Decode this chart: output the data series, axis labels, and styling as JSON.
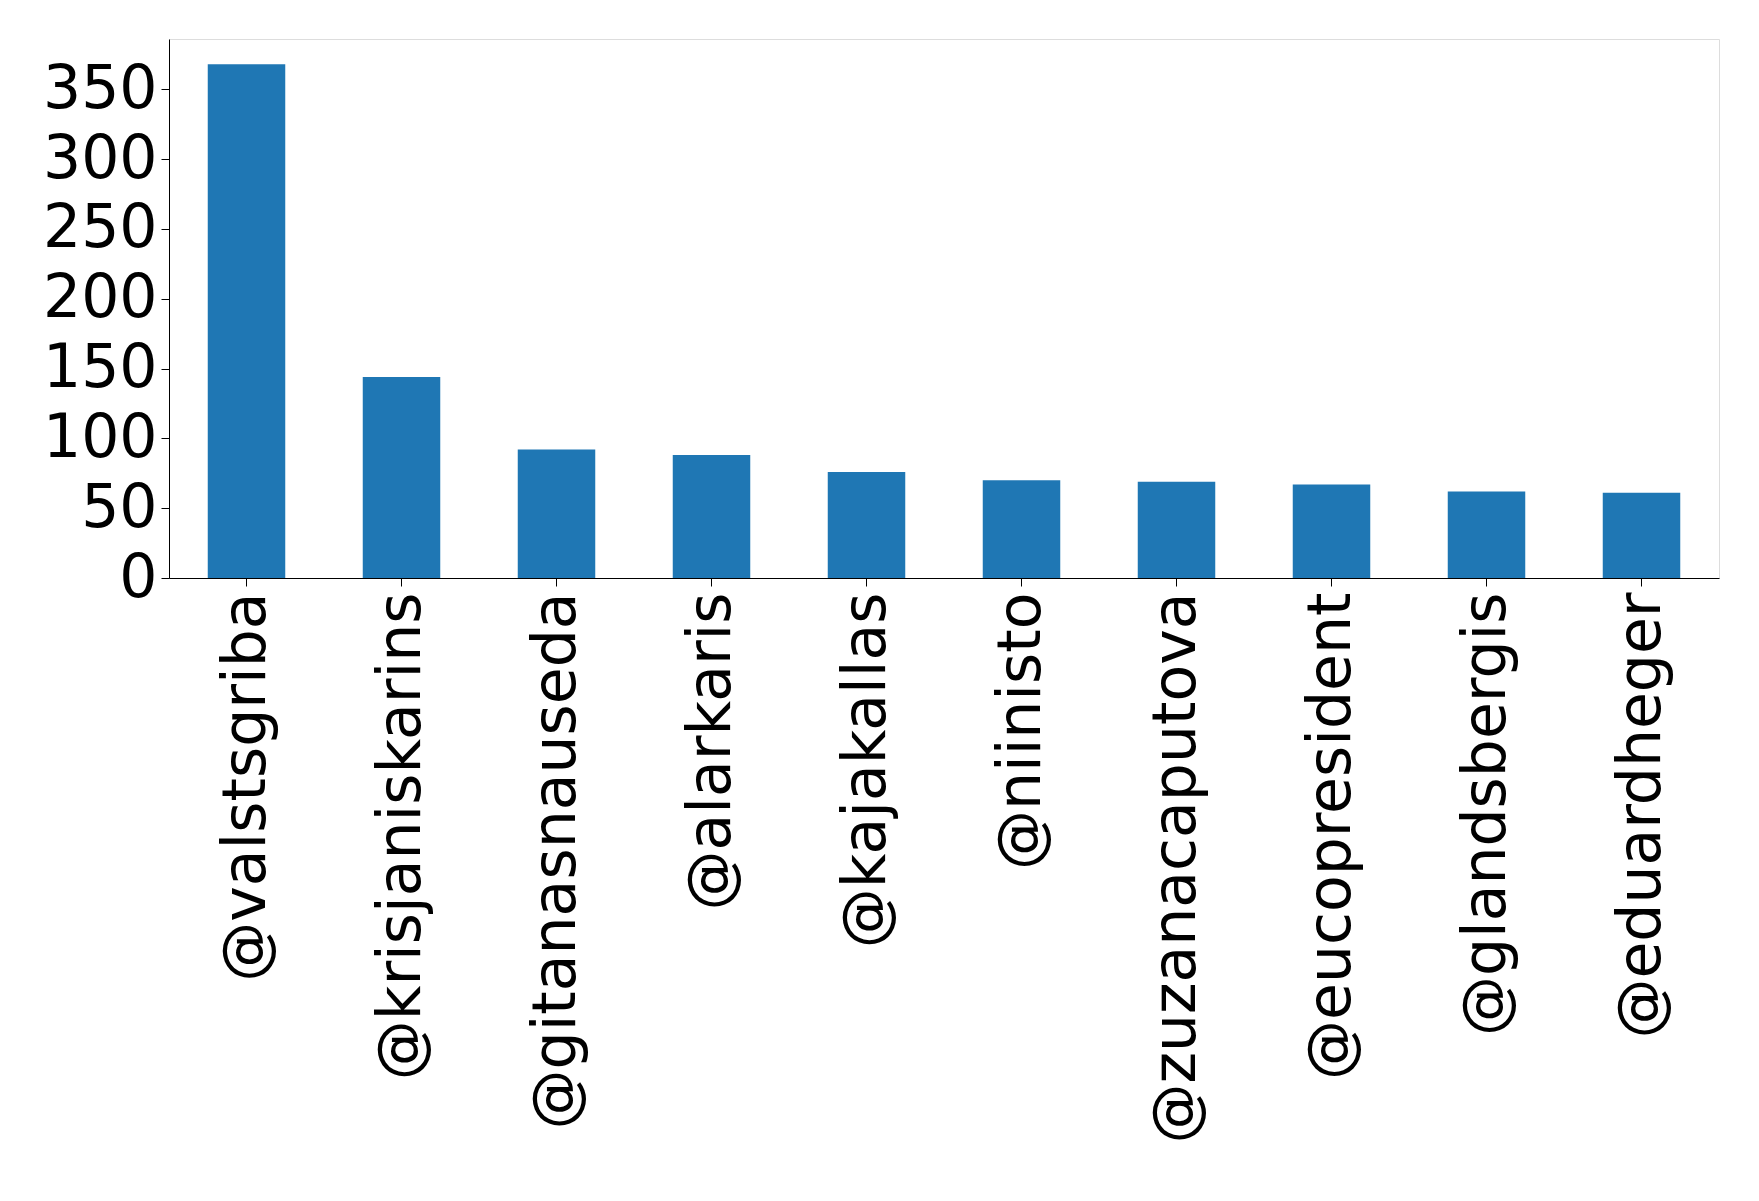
{
  "chart_data": {
    "type": "bar",
    "categories": [
      "@valstsgriba",
      "@krisjaniskarins",
      "@gitanasnauseda",
      "@alarkaris",
      "@kajakallas",
      "@niinisto",
      "@zuzanacaputova",
      "@eucopresident",
      "@glandsbergis",
      "@eduardheger"
    ],
    "values": [
      368,
      144,
      92,
      88,
      76,
      70,
      69,
      67,
      62,
      61
    ],
    "color": "#1f77b4",
    "ylim": [
      0,
      386
    ],
    "yticks": [
      0,
      50,
      100,
      150,
      200,
      250,
      300,
      350
    ],
    "grid": false
  }
}
